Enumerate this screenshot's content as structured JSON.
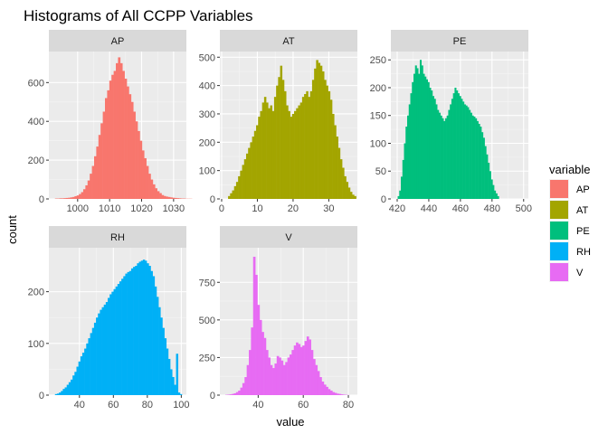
{
  "chart_data": {
    "type": "bar",
    "title": "Histograms of All CCPP Variables",
    "xlabel": "value",
    "ylabel": "count",
    "legend": {
      "title": "variable",
      "position": "right",
      "entries": [
        {
          "label": "AP",
          "color": "#F8766D"
        },
        {
          "label": "AT",
          "color": "#A3A500"
        },
        {
          "label": "PE",
          "color": "#00BF7D"
        },
        {
          "label": "RH",
          "color": "#00B0F6"
        },
        {
          "label": "V",
          "color": "#E76BF3"
        }
      ]
    },
    "panels": [
      {
        "name": "AP",
        "color": "#F8766D",
        "xlim": [
          991,
          1034
        ],
        "ylim": [
          0,
          760
        ],
        "xticks": [
          1000,
          1010,
          1020,
          1030
        ],
        "yticks": [
          0,
          200,
          400,
          600
        ],
        "bin_start": 992.9,
        "bin_width": 0.68,
        "counts": [
          2,
          2,
          3,
          3,
          4,
          5,
          6,
          8,
          10,
          14,
          18,
          25,
          35,
          50,
          70,
          95,
          130,
          170,
          220,
          270,
          330,
          390,
          450,
          520,
          560,
          610,
          640,
          660,
          700,
          730,
          700,
          660,
          620,
          580,
          540,
          500,
          450,
          400,
          350,
          300,
          250,
          210,
          170,
          130,
          100,
          75,
          55,
          40,
          30,
          20,
          15,
          12,
          10,
          8,
          6,
          5,
          4,
          3,
          2,
          2,
          1,
          1,
          1
        ]
      },
      {
        "name": "AT",
        "color": "#A3A500",
        "xlim": [
          -0.5,
          38
        ],
        "ylim": [
          0,
          520
        ],
        "xticks": [
          0,
          10,
          20,
          30
        ],
        "yticks": [
          0,
          100,
          200,
          300,
          400,
          500
        ],
        "bin_start": 1.8,
        "bin_width": 0.56,
        "counts": [
          10,
          20,
          30,
          45,
          60,
          80,
          100,
          120,
          140,
          160,
          180,
          200,
          220,
          240,
          260,
          290,
          310,
          340,
          360,
          340,
          320,
          330,
          310,
          360,
          400,
          430,
          470,
          420,
          380,
          330,
          310,
          290,
          300,
          310,
          320,
          330,
          340,
          360,
          370,
          380,
          360,
          380,
          420,
          460,
          490,
          480,
          470,
          450,
          420,
          400,
          380,
          350,
          300,
          260,
          220,
          180,
          140,
          110,
          80,
          60,
          40,
          25,
          15,
          10
        ]
      },
      {
        "name": "PE",
        "color": "#00BF7D",
        "xlim": [
          416,
          503
        ],
        "ylim": [
          0,
          265
        ],
        "xticks": [
          420,
          440,
          460,
          480,
          500
        ],
        "yticks": [
          0,
          50,
          100,
          150,
          200,
          250
        ],
        "bin_start": 420.3,
        "bin_width": 1.0,
        "counts": [
          5,
          15,
          40,
          70,
          100,
          130,
          150,
          170,
          190,
          210,
          225,
          240,
          235,
          225,
          250,
          240,
          225,
          220,
          215,
          210,
          200,
          195,
          185,
          180,
          170,
          160,
          155,
          150,
          145,
          140,
          145,
          150,
          160,
          170,
          180,
          190,
          200,
          195,
          190,
          185,
          180,
          175,
          170,
          168,
          165,
          160,
          155,
          150,
          148,
          145,
          140,
          135,
          130,
          120,
          110,
          95,
          80,
          65,
          50,
          35,
          25,
          15,
          10,
          5
        ]
      },
      {
        "name": "RH",
        "color": "#00B0F6",
        "xlim": [
          22,
          103
        ],
        "ylim": [
          0,
          285
        ],
        "xticks": [
          40,
          60,
          80,
          100
        ],
        "yticks": [
          0,
          100,
          200
        ],
        "bin_start": 25.6,
        "bin_width": 1.15,
        "counts": [
          2,
          3,
          5,
          8,
          12,
          15,
          20,
          25,
          30,
          38,
          45,
          55,
          65,
          75,
          82,
          90,
          100,
          110,
          120,
          130,
          140,
          150,
          158,
          165,
          170,
          175,
          180,
          188,
          195,
          200,
          205,
          210,
          215,
          220,
          225,
          230,
          235,
          238,
          240,
          245,
          248,
          250,
          255,
          258,
          260,
          262,
          260,
          255,
          250,
          240,
          230,
          210,
          190,
          170,
          150,
          130,
          110,
          90,
          70,
          50,
          35,
          20,
          80,
          5,
          2
        ]
      },
      {
        "name": "V",
        "color": "#E76BF3",
        "xlim": [
          23,
          84
        ],
        "ylim": [
          0,
          980
        ],
        "xticks": [
          40,
          60,
          80
        ],
        "yticks": [
          0,
          250,
          500,
          750
        ],
        "bin_start": 25.4,
        "bin_width": 0.95,
        "counts": [
          2,
          3,
          5,
          8,
          12,
          20,
          30,
          50,
          80,
          120,
          200,
          300,
          450,
          920,
          800,
          600,
          500,
          420,
          380,
          300,
          250,
          200,
          180,
          210,
          260,
          250,
          230,
          200,
          220,
          250,
          270,
          300,
          330,
          350,
          340,
          320,
          330,
          360,
          390,
          370,
          300,
          240,
          200,
          160,
          120,
          90,
          70,
          55,
          40,
          30,
          20,
          15,
          10,
          8,
          5,
          3,
          2,
          1
        ]
      }
    ]
  }
}
